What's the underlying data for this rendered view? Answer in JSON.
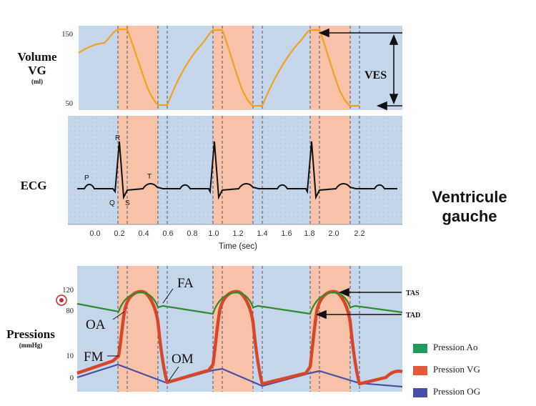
{
  "panels": {
    "volume": {
      "label_line1": "Volume",
      "label_line2": "VG",
      "unit": "(ml)",
      "y_ticks": [
        "150",
        "50"
      ],
      "ves_label": "VES",
      "line_color": "#f2a21e"
    },
    "ecg": {
      "label": "ECG",
      "wave_labels": {
        "p": "P",
        "r": "R",
        "q": "Q",
        "s": "S",
        "t": "T"
      },
      "x_ticks": [
        "0.0",
        "0.2",
        "0.4",
        "0.6",
        "0.8",
        "1.0",
        "1.2",
        "1.4",
        "1.6",
        "1.8",
        "2.0",
        "2.2"
      ],
      "x_label": "Time (sec)"
    },
    "pressure": {
      "label": "Pressions",
      "unit": "(mmHg)",
      "y_ticks": [
        "120",
        "80",
        "10",
        "0"
      ],
      "annotations": {
        "fa": "FA",
        "oa": "OA",
        "fm": "FM",
        "om": "OM",
        "tas": "TAS",
        "tad": "TAD"
      }
    }
  },
  "title": {
    "line1": "Ventricule",
    "line2": "gauche"
  },
  "legend": [
    {
      "label": "Pression Ao",
      "color": "#1f9a5a"
    },
    {
      "label": "Pression VG",
      "color": "#e05a3c"
    },
    {
      "label": "Pression OG",
      "color": "#4a4ea8"
    }
  ],
  "colors": {
    "diastole_bg": "#c5d6ea",
    "systole_bg": "#f7c2a8",
    "ao_line": "#2e8b2e",
    "vg_line": "#d9472b",
    "og_line": "#4a4ea8"
  }
}
